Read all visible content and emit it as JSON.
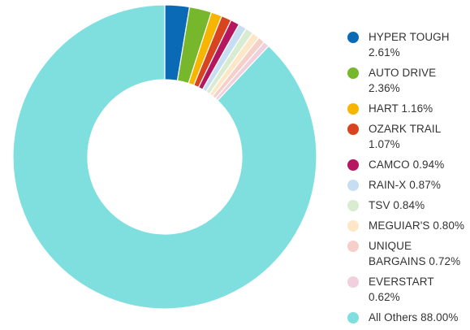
{
  "chart_data": {
    "type": "pie",
    "style": "donut",
    "legend_position": "right",
    "slices": [
      {
        "label": "HYPER TOUGH",
        "value": 2.61,
        "legend_lines": [
          "HYPER TOUGH",
          "2.61%"
        ],
        "color": "#0b6ab5"
      },
      {
        "label": "AUTO DRIVE",
        "value": 2.36,
        "legend_lines": [
          "AUTO DRIVE",
          "2.36%"
        ],
        "color": "#77b72c"
      },
      {
        "label": "HART",
        "value": 1.16,
        "legend_lines": [
          "HART 1.16%"
        ],
        "color": "#f7b500"
      },
      {
        "label": "OZARK TRAIL",
        "value": 1.07,
        "legend_lines": [
          "OZARK TRAIL",
          "1.07%"
        ],
        "color": "#d84320"
      },
      {
        "label": "CAMCO",
        "value": 0.94,
        "legend_lines": [
          "CAMCO 0.94%"
        ],
        "color": "#b5165f"
      },
      {
        "label": "RAIN-X",
        "value": 0.87,
        "legend_lines": [
          "RAIN-X 0.87%"
        ],
        "color": "#c7def2"
      },
      {
        "label": "TSV",
        "value": 0.84,
        "legend_lines": [
          "TSV 0.84%"
        ],
        "color": "#d9ecd2"
      },
      {
        "label": "MEGUIAR'S",
        "value": 0.8,
        "legend_lines": [
          "MEGUIAR'S 0.80%"
        ],
        "color": "#fde7c6"
      },
      {
        "label": "UNIQUE BARGAINS",
        "value": 0.72,
        "legend_lines": [
          "UNIQUE",
          "BARGAINS 0.72%"
        ],
        "color": "#f5d0c8"
      },
      {
        "label": "EVERSTART",
        "value": 0.62,
        "legend_lines": [
          "EVERSTART",
          "0.62%"
        ],
        "color": "#efd0dc"
      },
      {
        "label": "All Others",
        "value": 88.0,
        "legend_lines": [
          "All Others 88.00%"
        ],
        "color": "#7fdfdf"
      }
    ]
  }
}
